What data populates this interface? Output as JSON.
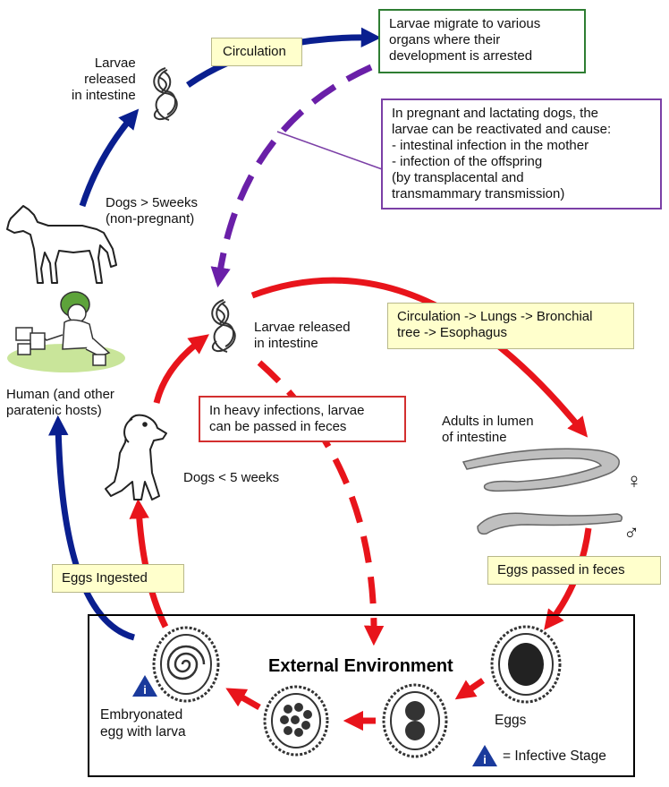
{
  "labels": {
    "circulation": "Circulation",
    "larvae_migrate": "Larvae migrate to various\norgans where their\ndevelopment is arrested",
    "larvae_released_top": "Larvae\nreleased\nin intestine",
    "pregnant_box": "In pregnant and lactating dogs, the\nlarvae can be reactivated and cause:\n - intestinal infection in the mother\n - infection of the offspring\n   (by transplacental and\n   transmammary transmission)",
    "dogs_over_5": "Dogs > 5weeks\n(non-pregnant)",
    "larvae_released_mid": "Larvae released\nin intestine",
    "circulation_lungs": "Circulation -> Lungs -> Bronchial\ntree -> Esophagus",
    "human_hosts": "Human (and other\nparatenic hosts)",
    "heavy_infections": "In heavy infections, larvae\ncan be passed in feces",
    "adults_lumen": "Adults in lumen\nof intestine",
    "female_symbol": "♀",
    "male_symbol": "♂",
    "dogs_under_5": "Dogs < 5 weeks",
    "eggs_ingested": "Eggs Ingested",
    "eggs_passed": "Eggs passed in feces",
    "external_env": "External Environment",
    "embryonated": "Embryonated\negg with larva",
    "eggs": "Eggs",
    "infective_stage": "= Infective Stage",
    "infective_icon": "i"
  },
  "colors": {
    "blue_arrow": "#0a1f8f",
    "red_arrow": "#e8141b",
    "purple_arrow": "#6a1fa8",
    "green_border": "#2e7d32",
    "purple_border": "#7b3fa6",
    "red_border": "#d32f2f",
    "label_fill": "#ffffcc",
    "info_icon": "#1a3a9c",
    "grass": "#c9e59a"
  },
  "icons": [
    "larva-top-icon",
    "larva-mid-icon",
    "dog-adult-icon",
    "human-child-icon",
    "puppy-icon",
    "adult-worm-female-icon",
    "adult-worm-male-icon",
    "egg-embryonated-icon",
    "egg-morula-icon",
    "egg-two-cell-icon",
    "egg-unembryonated-icon",
    "infective-stage-icon"
  ]
}
